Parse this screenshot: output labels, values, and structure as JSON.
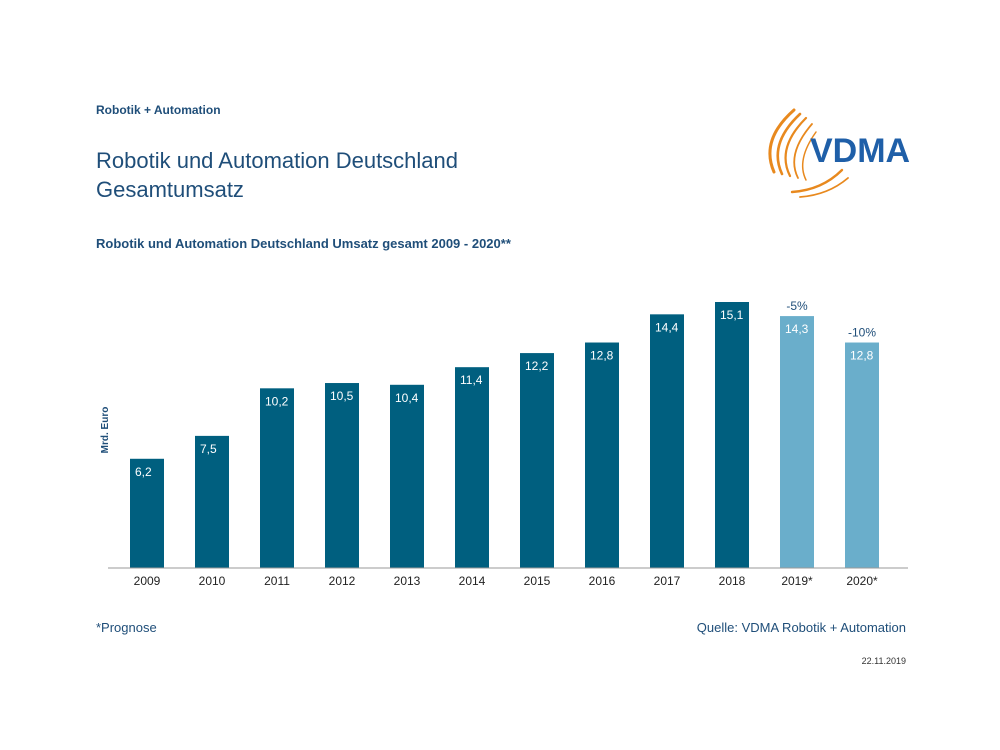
{
  "header": {
    "section_label": "Robotik + Automation",
    "title_line1": "Robotik und Automation Deutschland",
    "title_line2": "Gesamtumsatz",
    "logo_text": "VDMA"
  },
  "colors": {
    "actual": "#005f7f",
    "forecast": "#6aaecb",
    "text_dark": "#1f4e79",
    "logo_orange": "#e8891e",
    "logo_blue": "#1f5fa8"
  },
  "chart_data": {
    "type": "bar",
    "title": "Robotik und Automation Deutschland Umsatz gesamt 2009 - 2020**",
    "ylabel": "Mrd. Euro",
    "xlabel": "",
    "categories": [
      "2009",
      "2010",
      "2011",
      "2012",
      "2013",
      "2014",
      "2015",
      "2016",
      "2017",
      "2018",
      "2019*",
      "2020*"
    ],
    "values": [
      6.2,
      7.5,
      10.2,
      10.5,
      10.4,
      11.4,
      12.2,
      12.8,
      14.4,
      15.1,
      14.3,
      12.8
    ],
    "value_labels": [
      "6,2",
      "7,5",
      "10,2",
      "10,5",
      "10,4",
      "11,4",
      "12,2",
      "12,8",
      "14,4",
      "15,1",
      "14,3",
      "12,8"
    ],
    "forecast": [
      false,
      false,
      false,
      false,
      false,
      false,
      false,
      false,
      false,
      false,
      true,
      true
    ],
    "annotations": [
      {
        "category": "2019*",
        "text": "-5%"
      },
      {
        "category": "2020*",
        "text": "-10%"
      }
    ],
    "ylim": [
      0,
      15.1
    ],
    "grid": false,
    "legend": "none"
  },
  "footer": {
    "footnote": "*Prognose",
    "source": "Quelle: VDMA Robotik + Automation",
    "date": "22.11.2019"
  }
}
